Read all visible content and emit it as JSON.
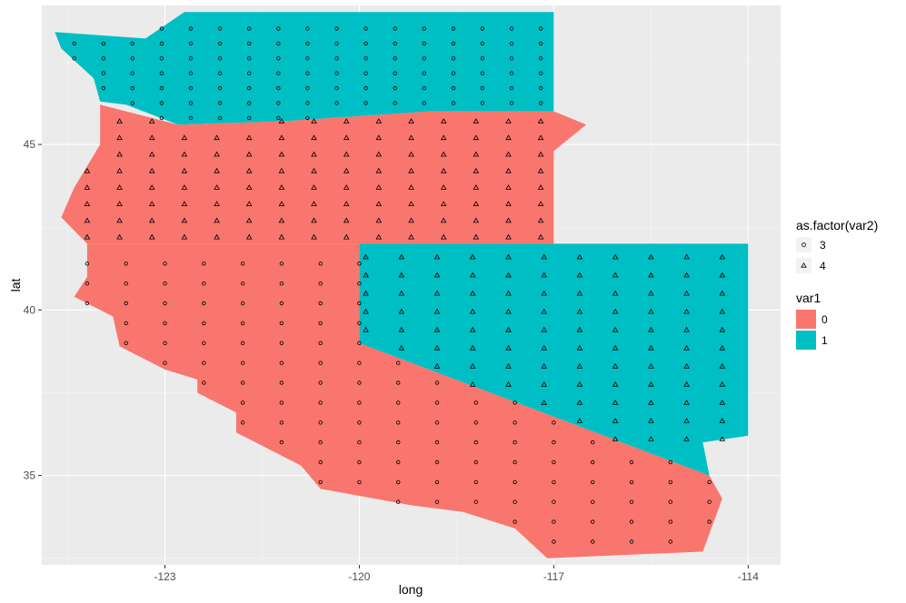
{
  "chart_data": {
    "type": "scatter",
    "subtype": "map with filled state polygons and point grid",
    "title": "",
    "xlabel": "long",
    "ylabel": "lat",
    "xlim": [
      -124.9,
      -113.5
    ],
    "ylim": [
      32.3,
      49.2
    ],
    "x_ticks": [
      -123,
      -120,
      -117,
      -114
    ],
    "x_tick_labels": [
      "-123",
      "-120",
      "-117",
      "-114"
    ],
    "y_ticks": [
      35,
      40,
      45
    ],
    "y_tick_labels": [
      "35",
      "40",
      "45"
    ],
    "grid": true,
    "background": "#ebebeb",
    "legend_position": "right",
    "fill_legend": {
      "title": "var1",
      "entries": [
        {
          "label": "0",
          "color": "#F8766D"
        },
        {
          "label": "1",
          "color": "#00BFC4"
        }
      ]
    },
    "shape_legend": {
      "title": "as.factor(var2)",
      "entries": [
        {
          "label": "3",
          "shape": "circle"
        },
        {
          "label": "4",
          "shape": "triangle"
        }
      ]
    },
    "regions": [
      {
        "name": "washington",
        "var1": 1,
        "outline": [
          [
            -124.7,
            48.4
          ],
          [
            -123.3,
            48.2
          ],
          [
            -122.7,
            49.0
          ],
          [
            -117.0,
            49.0
          ],
          [
            -117.0,
            46.0
          ],
          [
            -118.9,
            46.0
          ],
          [
            -121.2,
            45.7
          ],
          [
            -122.8,
            45.6
          ],
          [
            -123.6,
            46.2
          ],
          [
            -124.0,
            46.3
          ],
          [
            -124.1,
            47.0
          ],
          [
            -124.6,
            47.9
          ],
          [
            -124.7,
            48.4
          ]
        ]
      },
      {
        "name": "oregon",
        "var1": 0,
        "outline": [
          [
            -124.0,
            46.2
          ],
          [
            -122.8,
            45.6
          ],
          [
            -121.2,
            45.7
          ],
          [
            -118.9,
            46.0
          ],
          [
            -117.0,
            46.0
          ],
          [
            -116.5,
            45.6
          ],
          [
            -117.0,
            44.8
          ],
          [
            -117.0,
            42.0
          ],
          [
            -124.2,
            42.0
          ],
          [
            -124.6,
            42.8
          ],
          [
            -124.4,
            43.7
          ],
          [
            -124.0,
            45.0
          ],
          [
            -124.0,
            46.2
          ]
        ]
      },
      {
        "name": "california",
        "var1": 0,
        "outline": [
          [
            -124.2,
            42.0
          ],
          [
            -120.0,
            42.0
          ],
          [
            -120.0,
            39.0
          ],
          [
            -114.6,
            35.0
          ],
          [
            -114.4,
            34.3
          ],
          [
            -114.7,
            32.7
          ],
          [
            -117.1,
            32.5
          ],
          [
            -117.6,
            33.4
          ],
          [
            -118.4,
            33.9
          ],
          [
            -119.2,
            34.1
          ],
          [
            -120.6,
            34.6
          ],
          [
            -120.9,
            35.3
          ],
          [
            -121.9,
            36.3
          ],
          [
            -121.9,
            36.9
          ],
          [
            -122.5,
            37.5
          ],
          [
            -122.5,
            37.9
          ],
          [
            -123.0,
            38.2
          ],
          [
            -123.7,
            38.9
          ],
          [
            -123.8,
            39.8
          ],
          [
            -124.4,
            40.4
          ],
          [
            -124.2,
            41.0
          ],
          [
            -124.2,
            42.0
          ]
        ]
      },
      {
        "name": "nevada",
        "var1": 1,
        "outline": [
          [
            -120.0,
            42.0
          ],
          [
            -114.0,
            42.0
          ],
          [
            -114.0,
            36.2
          ],
          [
            -114.7,
            36.0
          ],
          [
            -114.6,
            35.0
          ],
          [
            -120.0,
            39.0
          ],
          [
            -120.0,
            42.0
          ]
        ]
      }
    ],
    "points": [
      {
        "name": "washington",
        "var2": 3,
        "x_start": -124.4,
        "x_step": 0.45,
        "y_start": 45.8,
        "y_step": 0.45,
        "x_max": -117.1,
        "y_max": 48.9
      },
      {
        "name": "oregon",
        "var2": 4,
        "x_start": -124.2,
        "x_step": 0.5,
        "y_start": 42.2,
        "y_step": 0.5,
        "x_max": -116.9,
        "y_max": 45.9
      },
      {
        "name": "california",
        "var2": 3,
        "x_start": -124.2,
        "x_step": 0.6,
        "y_start": 33.0,
        "y_step": 0.6,
        "x_max": -114.6,
        "y_max": 41.6
      },
      {
        "name": "nevada",
        "var2": 4,
        "x_start": -119.9,
        "x_step": 0.55,
        "y_start": 36.1,
        "y_step": 0.55,
        "x_max": -114.1,
        "y_max": 41.7
      }
    ]
  }
}
